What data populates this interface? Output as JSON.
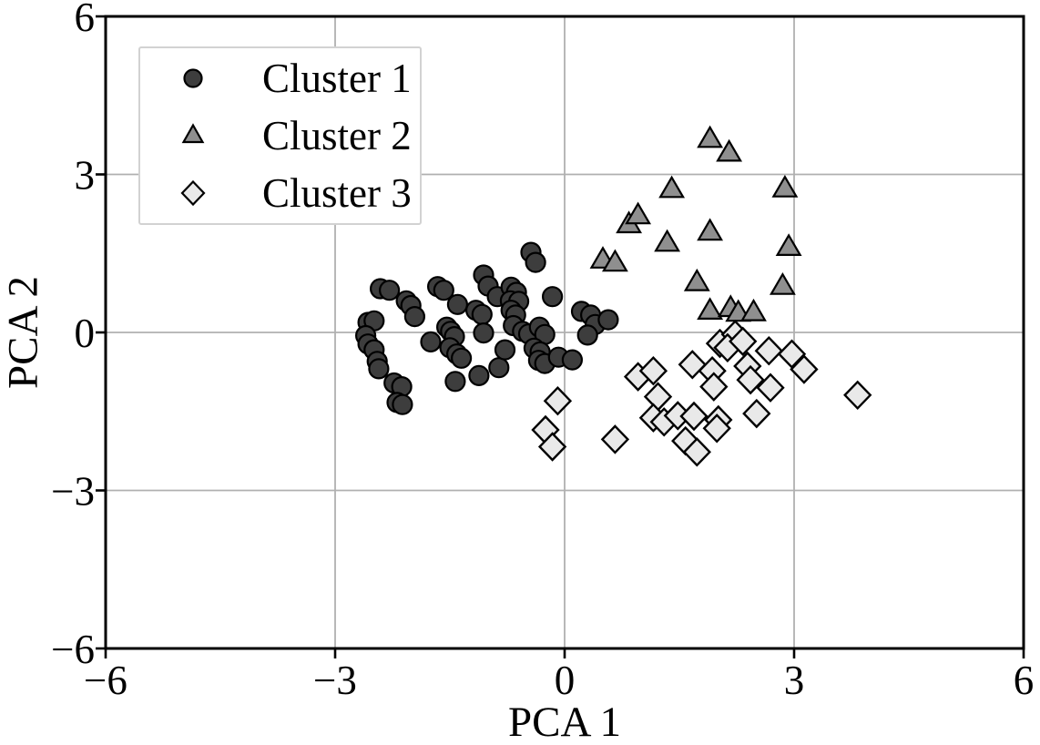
{
  "figure": {
    "background": "#ffffff",
    "axis_color": "#000000",
    "grid_color": "#b0b0b0",
    "legend_border_color": "#d2d2d2"
  },
  "chart_data": {
    "type": "scatter",
    "title": "",
    "xlabel": "PCA 1",
    "ylabel": "PCA 2",
    "xlim": [
      -6,
      6
    ],
    "ylim": [
      -6,
      6
    ],
    "x_ticks": [
      -6,
      -3,
      0,
      3,
      6
    ],
    "y_ticks": [
      -6,
      -3,
      0,
      3,
      6
    ],
    "x_tick_labels": [
      "−6",
      "−3",
      "0",
      "3",
      "6"
    ],
    "y_tick_labels": [
      "−6",
      "−3",
      "0",
      "3",
      "6"
    ],
    "grid": true,
    "legend": {
      "position": "upper left",
      "entries": [
        "Cluster 1",
        "Cluster 2",
        "Cluster 3"
      ]
    },
    "series": [
      {
        "name": "Cluster 1",
        "marker": "circle",
        "fill": "#3d3d3d",
        "edge": "#000000",
        "points": [
          [
            -2.41,
            0.83
          ],
          [
            -2.29,
            0.8
          ],
          [
            -2.57,
            0.19
          ],
          [
            -2.49,
            0.22
          ],
          [
            -2.6,
            -0.06
          ],
          [
            -2.57,
            -0.22
          ],
          [
            -2.49,
            -0.33
          ],
          [
            -2.45,
            -0.55
          ],
          [
            -2.43,
            -0.69
          ],
          [
            -2.23,
            -0.96
          ],
          [
            -2.13,
            -1.03
          ],
          [
            -2.19,
            -1.33
          ],
          [
            -2.12,
            -1.37
          ],
          [
            -2.07,
            0.6
          ],
          [
            -2.01,
            0.51
          ],
          [
            -1.96,
            0.3
          ],
          [
            -1.66,
            0.87
          ],
          [
            -1.58,
            0.8
          ],
          [
            -1.4,
            0.53
          ],
          [
            -1.75,
            -0.18
          ],
          [
            -1.54,
            0.1
          ],
          [
            -1.49,
            0.02
          ],
          [
            -1.44,
            -0.08
          ],
          [
            -1.5,
            -0.29
          ],
          [
            -1.41,
            -0.41
          ],
          [
            -1.35,
            -0.49
          ],
          [
            -1.43,
            -0.93
          ],
          [
            -1.06,
            1.09
          ],
          [
            -1.0,
            0.88
          ],
          [
            -1.16,
            0.42
          ],
          [
            -1.08,
            0.34
          ],
          [
            -1.06,
            -0.01
          ],
          [
            -1.12,
            -0.82
          ],
          [
            -0.86,
            -0.67
          ],
          [
            -0.78,
            -0.33
          ],
          [
            -0.88,
            0.68
          ],
          [
            -0.7,
            0.86
          ],
          [
            -0.63,
            0.76
          ],
          [
            -0.71,
            0.6
          ],
          [
            -0.6,
            0.59
          ],
          [
            -0.7,
            0.42
          ],
          [
            -0.64,
            0.33
          ],
          [
            -0.67,
            0.13
          ],
          [
            -0.55,
            0.02
          ],
          [
            -0.47,
            -0.03
          ],
          [
            -0.44,
            1.52
          ],
          [
            -0.38,
            1.33
          ],
          [
            -0.33,
            0.1
          ],
          [
            -0.26,
            -0.04
          ],
          [
            -0.4,
            -0.3
          ],
          [
            -0.32,
            -0.37
          ],
          [
            -0.34,
            -0.53
          ],
          [
            -0.26,
            -0.59
          ],
          [
            -0.16,
            0.68
          ],
          [
            -0.08,
            -0.47
          ],
          [
            0.1,
            -0.52
          ],
          [
            0.22,
            0.4
          ],
          [
            0.34,
            0.33
          ],
          [
            0.4,
            0.15
          ],
          [
            0.3,
            -0.05
          ],
          [
            0.57,
            0.24
          ]
        ]
      },
      {
        "name": "Cluster 2",
        "marker": "triangle",
        "fill": "#8f8f8f",
        "edge": "#000000",
        "points": [
          [
            0.5,
            1.37
          ],
          [
            0.66,
            1.31
          ],
          [
            0.84,
            2.04
          ],
          [
            0.96,
            2.21
          ],
          [
            1.34,
            1.69
          ],
          [
            1.4,
            2.71
          ],
          [
            1.9,
            3.66
          ],
          [
            2.15,
            3.4
          ],
          [
            2.88,
            2.72
          ],
          [
            1.9,
            1.9
          ],
          [
            2.93,
            1.61
          ],
          [
            1.73,
            0.94
          ],
          [
            2.85,
            0.87
          ],
          [
            1.9,
            0.4
          ],
          [
            2.17,
            0.45
          ],
          [
            2.27,
            0.36
          ],
          [
            2.47,
            0.37
          ]
        ]
      },
      {
        "name": "Cluster 3",
        "marker": "diamond",
        "fill": "#e9e9e9",
        "edge": "#000000",
        "points": [
          [
            -0.09,
            -1.3
          ],
          [
            -0.25,
            -1.85
          ],
          [
            -0.16,
            -2.17
          ],
          [
            0.66,
            -2.03
          ],
          [
            0.96,
            -0.84
          ],
          [
            1.16,
            -0.73
          ],
          [
            1.22,
            -1.22
          ],
          [
            1.16,
            -1.62
          ],
          [
            1.3,
            -1.7
          ],
          [
            1.48,
            -1.58
          ],
          [
            1.67,
            -0.61
          ],
          [
            1.69,
            -1.59
          ],
          [
            1.93,
            -0.73
          ],
          [
            1.95,
            -1.03
          ],
          [
            2.01,
            -1.66
          ],
          [
            1.99,
            -1.82
          ],
          [
            1.58,
            -2.06
          ],
          [
            1.73,
            -2.27
          ],
          [
            2.03,
            -0.21
          ],
          [
            2.23,
            -0.04
          ],
          [
            2.13,
            -0.29
          ],
          [
            2.33,
            -0.17
          ],
          [
            2.39,
            -0.64
          ],
          [
            2.43,
            -0.9
          ],
          [
            2.67,
            -0.35
          ],
          [
            2.69,
            -1.05
          ],
          [
            2.51,
            -1.54
          ],
          [
            2.97,
            -0.41
          ],
          [
            3.13,
            -0.7
          ],
          [
            3.83,
            -1.19
          ]
        ]
      }
    ]
  }
}
